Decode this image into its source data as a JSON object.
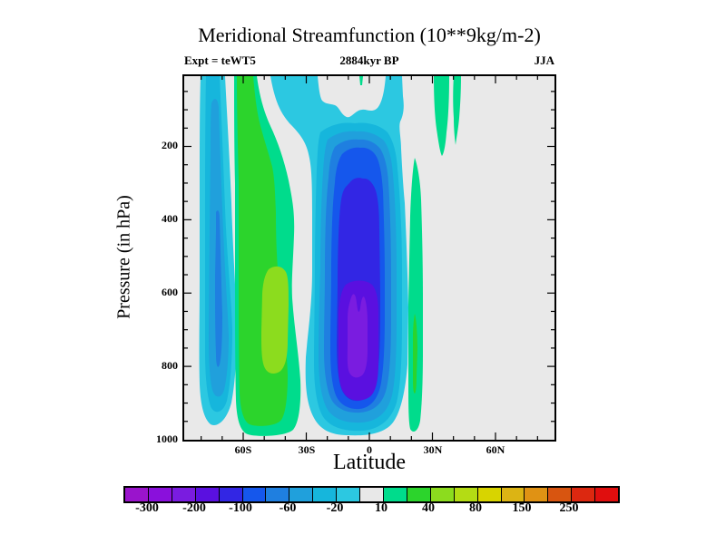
{
  "header": {
    "title": "Meridional Streamfunction (10**9kg/m-2)",
    "experiment": "Expt = teWT5",
    "date": "2884kyr BP",
    "season": "JJA"
  },
  "axes": {
    "x": {
      "title": "Latitude",
      "tick_labels": [
        "60S",
        "30S",
        "0",
        "30N",
        "60N"
      ],
      "tick_values": [
        -60,
        -30,
        0,
        30,
        60
      ],
      "minor_tick_values": [
        -80,
        -70,
        -50,
        -40,
        -20,
        -10,
        10,
        20,
        40,
        50,
        70,
        80
      ],
      "range": [
        -88,
        88
      ]
    },
    "y": {
      "title": "Pressure (in hPa)",
      "tick_labels": [
        "200",
        "400",
        "600",
        "800",
        "1000"
      ],
      "major_tick_values": [
        200,
        400,
        600,
        800
      ],
      "minor_tick_values": [
        50,
        100,
        150,
        250,
        300,
        350,
        450,
        500,
        550,
        650,
        700,
        750,
        850,
        900,
        950
      ],
      "range_top_to_bottom": [
        10,
        1000
      ]
    }
  },
  "colorbar": {
    "labels": [
      "-300",
      "-200",
      "-100",
      "-60",
      "-20",
      "10",
      "40",
      "80",
      "150",
      "250"
    ],
    "colors": [
      "#9a14cc",
      "#8a10dc",
      "#7a1ce0",
      "#5a10e0",
      "#3226e4",
      "#1557ec",
      "#1f7fe0",
      "#20a0dc",
      "#16b6dc",
      "#2cc8e1",
      "#e8e8e8",
      "#00dc8c",
      "#2cd42c",
      "#8cdc1e",
      "#b4dc14",
      "#d8d400",
      "#dcb414",
      "#e09214",
      "#d85510",
      "#dc2810",
      "#e00e0e"
    ],
    "levels": [
      -300,
      -250,
      -200,
      -150,
      -100,
      -80,
      -60,
      -40,
      -20,
      -10,
      10,
      20,
      40,
      60,
      80,
      100,
      150,
      200,
      250,
      300
    ]
  },
  "chart_data": {
    "type": "heatmap",
    "subtype": "filled-contour-latitude-pressure-section",
    "title": "Meridional Streamfunction (10**9kg/m-2)",
    "xlabel": "Latitude",
    "ylabel": "Pressure (in hPa)",
    "units": "10**9 kg/m-2",
    "x_range": [
      -88,
      88
    ],
    "y_range_top_to_bottom": [
      10,
      1000
    ],
    "contour_levels": [
      -300,
      -250,
      -200,
      -150,
      -100,
      -80,
      -60,
      -40,
      -20,
      -10,
      10,
      20,
      40,
      60,
      80,
      100,
      150,
      200,
      250,
      300
    ],
    "background_band": "values between -10 and 10 shown light gray",
    "features": [
      {
        "name": "antarctic-negative-cell",
        "lat_extent": [
          -83,
          -72
        ],
        "pressure_extent": [
          15,
          960
        ],
        "value_range": [
          -80,
          -20
        ],
        "min_location": {
          "lat": -78,
          "pressure": 600
        }
      },
      {
        "name": "southern-ferrel-positive-cell",
        "lat_extent": [
          -64,
          -46
        ],
        "pressure_extent": [
          10,
          975
        ],
        "value_range": [
          10,
          60
        ],
        "max_location": {
          "lat": -56,
          "pressure": 660
        }
      },
      {
        "name": "hadley-negative-cell",
        "lat_extent": [
          -30,
          19
        ],
        "pressure_extent": [
          150,
          985
        ],
        "value_range": [
          -250,
          -20
        ],
        "min_location": {
          "lat": -5,
          "pressure": 700
        }
      },
      {
        "name": "northern-positive-sliver",
        "lat_extent": [
          21,
          27
        ],
        "pressure_extent": [
          220,
          975
        ],
        "value_range": [
          10,
          40
        ]
      },
      {
        "name": "upper-level-positive-drops",
        "lat_extent": [
          32,
          41
        ],
        "pressure_extent": [
          10,
          220
        ],
        "value_range": [
          10,
          20
        ]
      },
      {
        "name": "tropopause-positive-speck",
        "lat_extent": [
          -5,
          -4
        ],
        "pressure_extent": [
          10,
          30
        ],
        "value_range": [
          10,
          20
        ]
      }
    ]
  }
}
